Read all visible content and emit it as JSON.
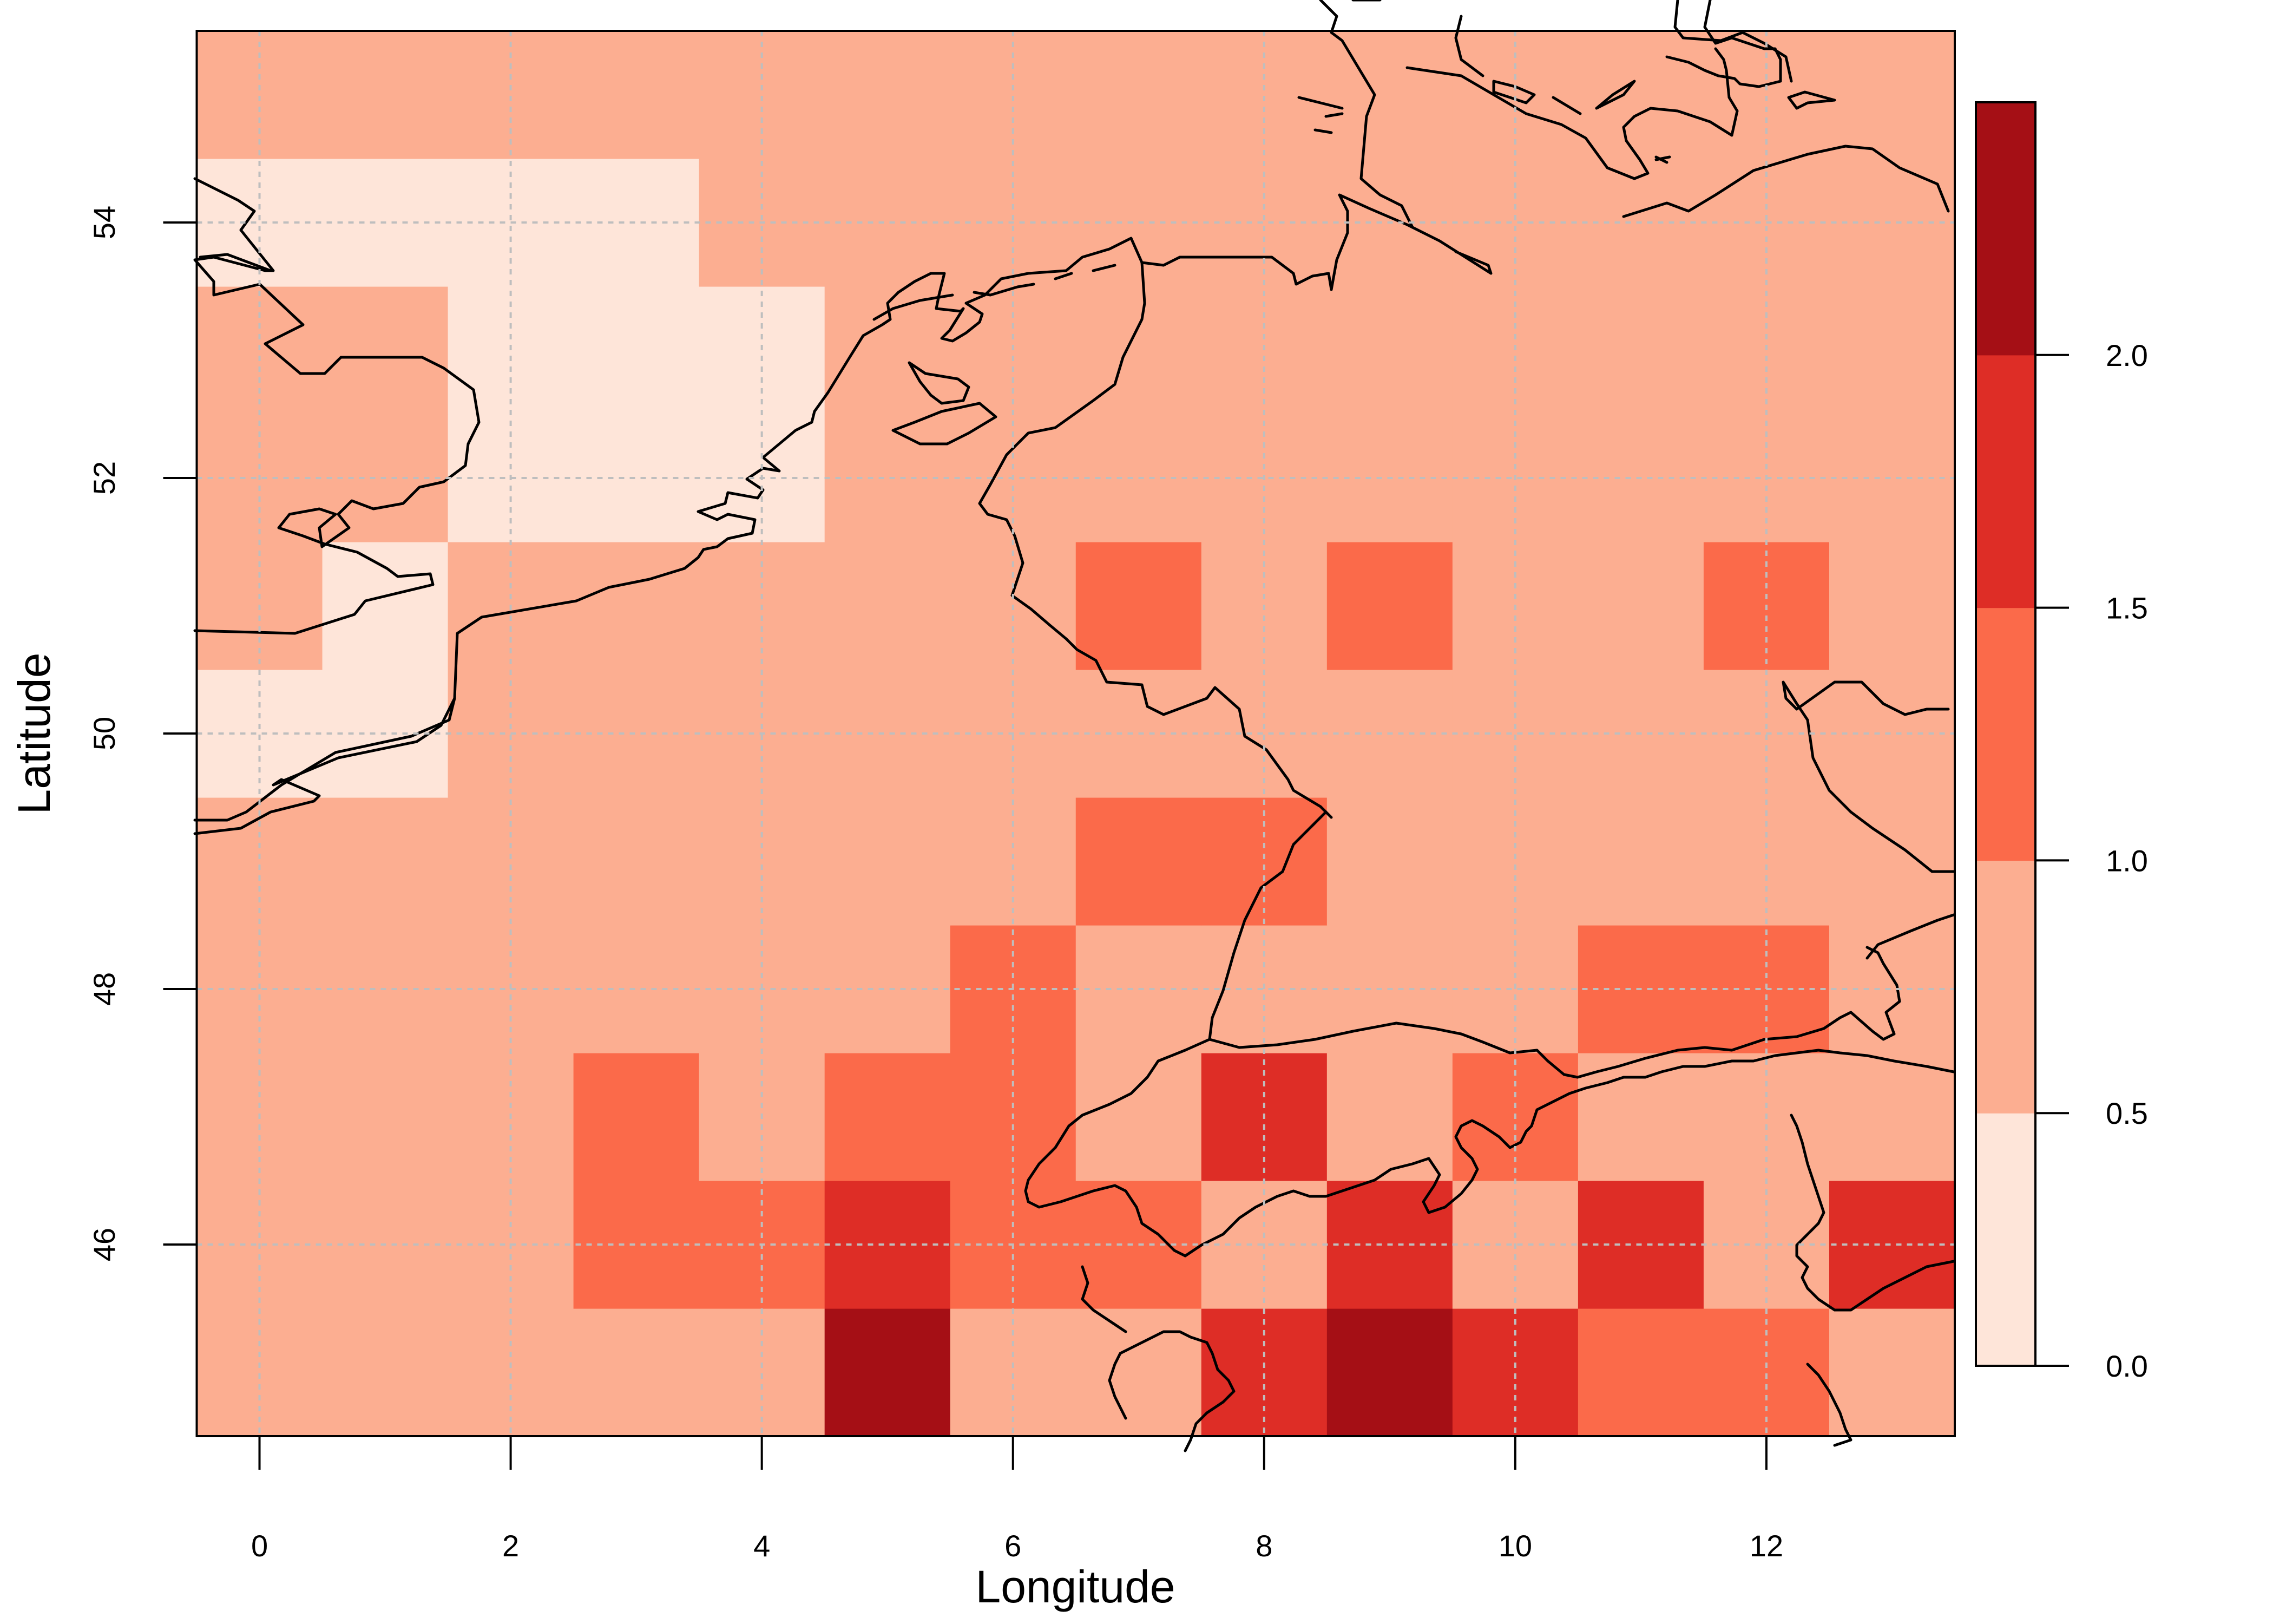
{
  "chart_data": {
    "type": "heatmap",
    "xlabel": "Longitude",
    "ylabel": "Latitude",
    "xlim": [
      -0.5,
      13.5
    ],
    "ylim": [
      44.5,
      55.5
    ],
    "x_ticks": [
      0,
      2,
      4,
      6,
      8,
      10,
      12
    ],
    "y_ticks": [
      46,
      48,
      50,
      52,
      54
    ],
    "grid": true,
    "x": [
      0,
      1,
      2,
      3,
      4,
      5,
      6,
      7,
      8,
      9,
      10,
      11,
      12,
      13
    ],
    "y": [
      45,
      46,
      47,
      48,
      49,
      50,
      51,
      52,
      53,
      54,
      55
    ],
    "values": [
      [
        0.75,
        0.75,
        0.75,
        0.75,
        0.75,
        2.25,
        0.75,
        0.75,
        1.75,
        2.25,
        1.75,
        1.25,
        1.25,
        0.75
      ],
      [
        0.75,
        0.75,
        0.75,
        1.25,
        1.25,
        1.75,
        1.25,
        1.25,
        0.75,
        1.75,
        0.75,
        1.75,
        0.75,
        1.75
      ],
      [
        0.75,
        0.75,
        0.75,
        1.25,
        0.75,
        1.25,
        1.25,
        0.75,
        1.75,
        0.75,
        1.25,
        0.75,
        0.75,
        0.75
      ],
      [
        0.75,
        0.75,
        0.75,
        0.75,
        0.75,
        0.75,
        1.25,
        0.75,
        0.75,
        0.75,
        0.75,
        1.25,
        1.25,
        0.75
      ],
      [
        0.75,
        0.75,
        0.75,
        0.75,
        0.75,
        0.75,
        0.75,
        1.25,
        1.25,
        0.75,
        0.75,
        0.75,
        0.75,
        0.75
      ],
      [
        0.25,
        0.25,
        0.75,
        0.75,
        0.75,
        0.75,
        0.75,
        0.75,
        0.75,
        0.75,
        0.75,
        0.75,
        0.75,
        0.75
      ],
      [
        0.75,
        0.25,
        0.75,
        0.75,
        0.75,
        0.75,
        0.75,
        1.25,
        0.75,
        1.25,
        0.75,
        0.75,
        1.25,
        0.75
      ],
      [
        0.75,
        0.75,
        0.25,
        0.25,
        0.25,
        0.75,
        0.75,
        0.75,
        0.75,
        0.75,
        0.75,
        0.75,
        0.75,
        0.75
      ],
      [
        0.75,
        0.75,
        0.25,
        0.25,
        0.25,
        0.75,
        0.75,
        0.75,
        0.75,
        0.75,
        0.75,
        0.75,
        0.75,
        0.75
      ],
      [
        0.25,
        0.25,
        0.25,
        0.25,
        0.75,
        0.75,
        0.75,
        0.75,
        0.75,
        0.75,
        0.75,
        0.75,
        0.75,
        0.75
      ],
      [
        0.75,
        0.75,
        0.75,
        0.75,
        0.75,
        0.75,
        0.75,
        0.75,
        0.75,
        0.75,
        0.75,
        0.75,
        0.75,
        0.75
      ]
    ],
    "colorbar": {
      "breaks": [
        0.0,
        0.5,
        1.0,
        1.5,
        2.0,
        2.5
      ],
      "labels": [
        "0.0",
        "0.5",
        "1.0",
        "1.5",
        "2.0"
      ],
      "colors": [
        "#fee5d9",
        "#fcae91",
        "#fb6a4a",
        "#de2d26",
        "#a50f15"
      ],
      "placement": "right"
    },
    "coastline_color": "#000000",
    "grid_color": "#bebebe"
  }
}
